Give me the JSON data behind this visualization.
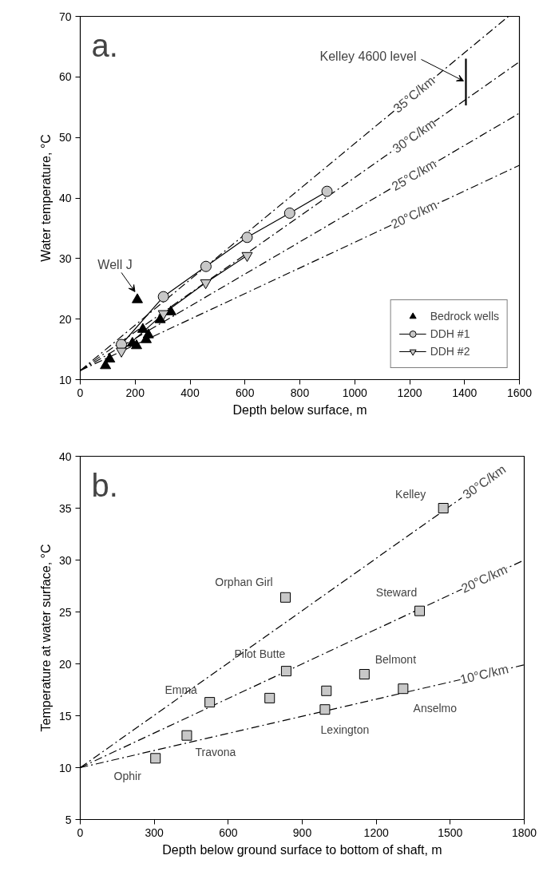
{
  "chart_data": [
    {
      "type": "scatter",
      "xlabel": "Depth below surface, m",
      "ylabel": "Water temperature, °C",
      "xlim": [
        0,
        1600
      ],
      "ylim": [
        10,
        70
      ],
      "xticks": [
        0,
        200,
        400,
        600,
        800,
        1000,
        1200,
        1400,
        1600
      ],
      "yticks": [
        10,
        20,
        30,
        40,
        50,
        60,
        70
      ],
      "grid": false,
      "legend": "bottom right",
      "annotations": [
        "a.",
        {
          "text": "Well J",
          "x": 208,
          "y": 23.2
        },
        {
          "text": "Kelley 4600 level",
          "x": 1405,
          "y": 59.2
        }
      ],
      "series": [
        {
          "name": "35°C/km",
          "type": "line",
          "marker": "none",
          "line_style": "dashdot",
          "color": "#000000",
          "x": [
            0,
            1560
          ],
          "values": [
            11.5,
            70
          ]
        },
        {
          "name": "30°C/km",
          "type": "line",
          "marker": "none",
          "line_style": "dashdot",
          "color": "#000000",
          "x": [
            0,
            1600
          ],
          "values": [
            11.5,
            62.5
          ]
        },
        {
          "name": "25°C/km",
          "type": "line",
          "marker": "none",
          "line_style": "dashdot",
          "color": "#000000",
          "x": [
            0,
            1600
          ],
          "values": [
            11.5,
            54.0
          ]
        },
        {
          "name": "20°C/km",
          "type": "line",
          "marker": "none",
          "line_style": "dashdot",
          "color": "#000000",
          "x": [
            0,
            1600
          ],
          "values": [
            11.5,
            45.4
          ]
        },
        {
          "name": "Bedrock wells",
          "marker": "triangle",
          "color": "#000000",
          "x": [
            92,
            107,
            190,
            205,
            228,
            240,
            248,
            291,
            330,
            208
          ],
          "values": [
            12.3,
            13.4,
            16.0,
            15.6,
            18.3,
            16.6,
            17.4,
            19.9,
            21.2,
            23.2
          ]
        },
        {
          "name": "DDH #1",
          "type": "line",
          "marker": "circle",
          "line_style": "solid",
          "color": "#c8c8c8",
          "x": [
            150,
            303,
            458,
            608,
            763,
            899
          ],
          "values": [
            15.8,
            23.7,
            28.7,
            33.5,
            37.5,
            41.1
          ]
        },
        {
          "name": "DDH #2",
          "type": "line",
          "marker": "triangle_down",
          "line_style": "solid",
          "color": "#c8c8c8",
          "x": [
            150,
            303,
            457,
            608
          ],
          "values": [
            14.7,
            20.9,
            26.0,
            30.5
          ]
        },
        {
          "type": "line",
          "marker": "none",
          "line_style": "solid",
          "color": "#000000",
          "x": [
            1405,
            1405
          ],
          "values": [
            55.3,
            63.0
          ]
        }
      ]
    },
    {
      "type": "scatter",
      "xlabel": "Depth below ground surface to bottom of shaft, m",
      "ylabel": "Temperature at water surface, °C",
      "xlim": [
        0,
        1800
      ],
      "ylim": [
        5,
        40
      ],
      "xticks": [
        0,
        300,
        600,
        900,
        1200,
        1500,
        1800
      ],
      "yticks": [
        5,
        10,
        15,
        20,
        25,
        30,
        35,
        40
      ],
      "grid": false,
      "annotations": [
        "b."
      ],
      "series": [
        {
          "name": "30°C/km",
          "type": "line",
          "marker": "none",
          "line_style": "dashdot",
          "color": "#000000",
          "x": [
            0,
            1547
          ],
          "values": [
            10,
            36
          ]
        },
        {
          "name": "20°C/km",
          "type": "line",
          "marker": "none",
          "line_style": "dashdot",
          "color": "#000000",
          "x": [
            0,
            1800
          ],
          "values": [
            10,
            30
          ]
        },
        {
          "name": "10°C/km",
          "type": "line",
          "marker": "none",
          "line_style": "dashdot",
          "color": "#000000",
          "x": [
            0,
            1800
          ],
          "values": [
            10,
            19.9
          ]
        },
        {
          "marker": "square",
          "color": "#c8c8c8",
          "x": [
            305,
            432,
            525,
            768,
            832,
            835,
            992,
            998,
            1152,
            1309,
            1376,
            1472
          ],
          "values": [
            10.9,
            13.1,
            16.3,
            16.7,
            26.4,
            19.3,
            15.6,
            17.4,
            19.0,
            17.6,
            25.1,
            35.0
          ],
          "value_labels": [
            "Ophir",
            "Travona",
            "Emma",
            null,
            "Orphan Girl",
            "Pilot Butte",
            "Lexington",
            null,
            "Belmont",
            "Anselmo",
            "Steward",
            "Kelley"
          ]
        }
      ]
    }
  ]
}
